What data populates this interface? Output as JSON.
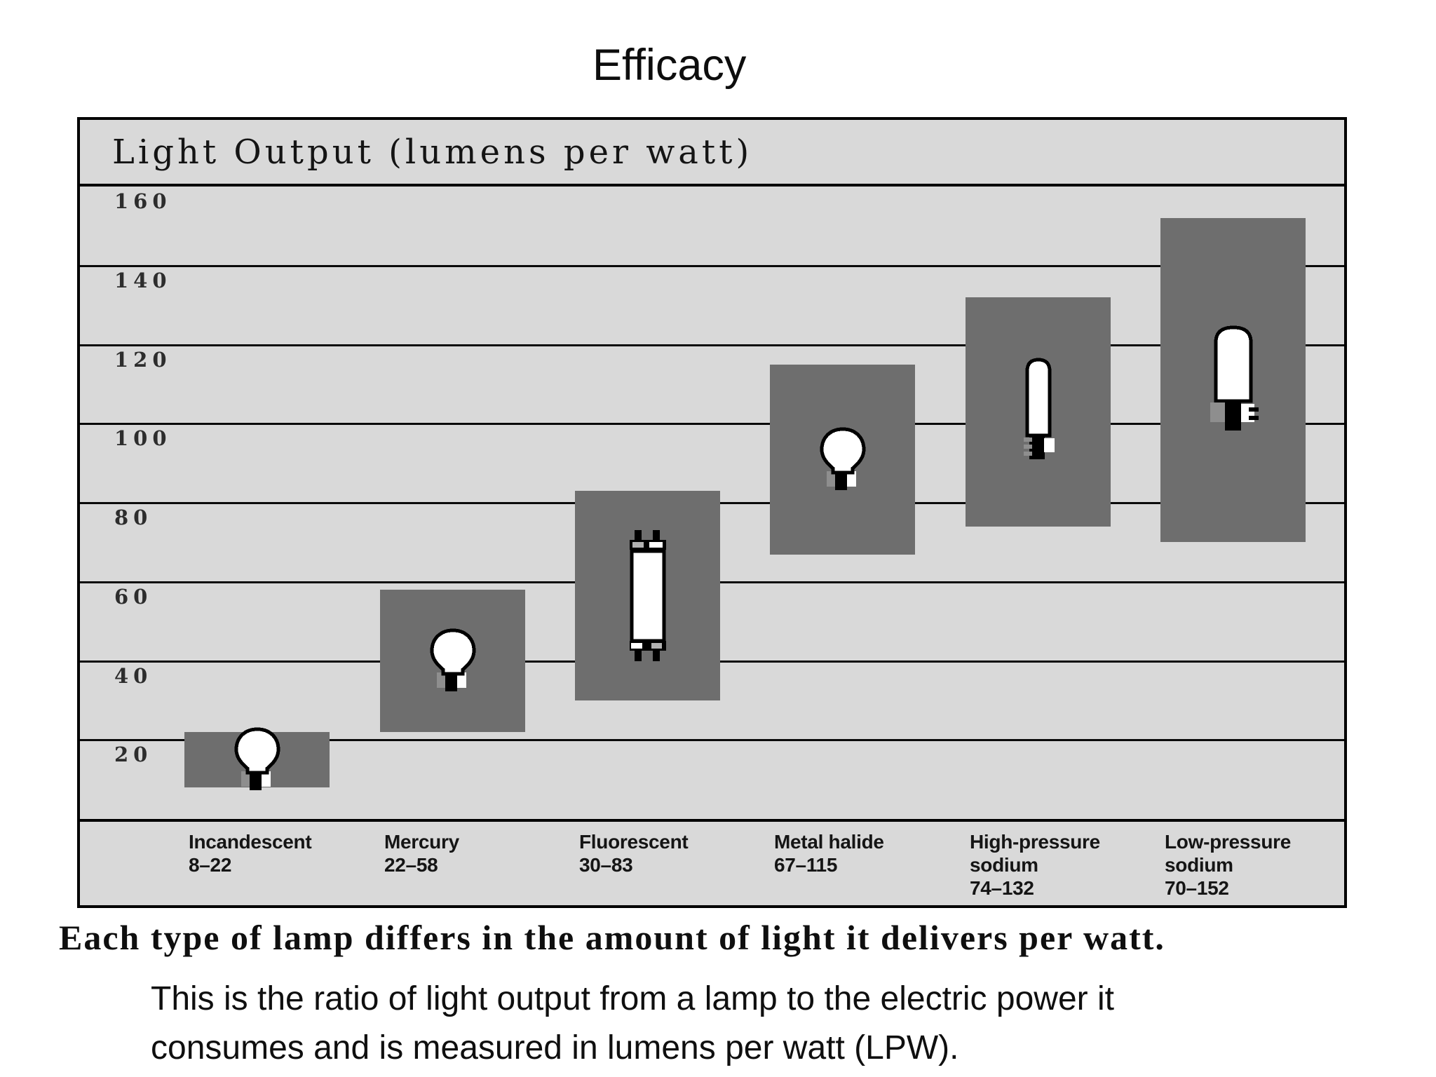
{
  "page": {
    "title": "Efficacy",
    "caption": "Each type of lamp differs in the amount of light it delivers per watt.",
    "body_lines": [
      "This is the ratio of light output from a lamp to the electric power it",
      "consumes and is measured in lumens per watt (LPW)."
    ]
  },
  "chart_data": {
    "type": "bar",
    "variant": "floating-range-bars",
    "title": "Light Output (lumens per watt)",
    "ylabel": "Light Output (lumens per watt)",
    "ylim": [
      0,
      160
    ],
    "yticks": [
      160,
      140,
      120,
      100,
      80,
      60,
      40,
      20
    ],
    "grid": "horizontal",
    "legend": "none",
    "plot_bg": "#d9d9d9",
    "bar_color": "#6e6e6e",
    "gridline_color": "#0a0a0a",
    "categories": [
      "Incandescent",
      "Mercury",
      "Fluorescent",
      "Metal halide",
      "High-pressure sodium",
      "Low-pressure sodium"
    ],
    "lamps": [
      {
        "name": "Incandescent",
        "range_label": "8–22",
        "min": 8,
        "max": 22,
        "icon": "incandescent-bulb"
      },
      {
        "name": "Mercury",
        "range_label": "22–58",
        "min": 22,
        "max": 58,
        "icon": "mercury-bulb"
      },
      {
        "name": "Fluorescent",
        "range_label": "30–83",
        "min": 30,
        "max": 83,
        "icon": "fluorescent-tube"
      },
      {
        "name": "Metal halide",
        "range_label": "67–115",
        "min": 67,
        "max": 115,
        "icon": "metal-halide-bulb"
      },
      {
        "name": "High-pressure sodium",
        "range_label": "74–132",
        "min": 74,
        "max": 132,
        "icon": "high-pressure-sodium-lamp"
      },
      {
        "name": "Low-pressure sodium",
        "range_label": "70–152",
        "min": 70,
        "max": 152,
        "icon": "low-pressure-sodium-lamp"
      }
    ]
  }
}
